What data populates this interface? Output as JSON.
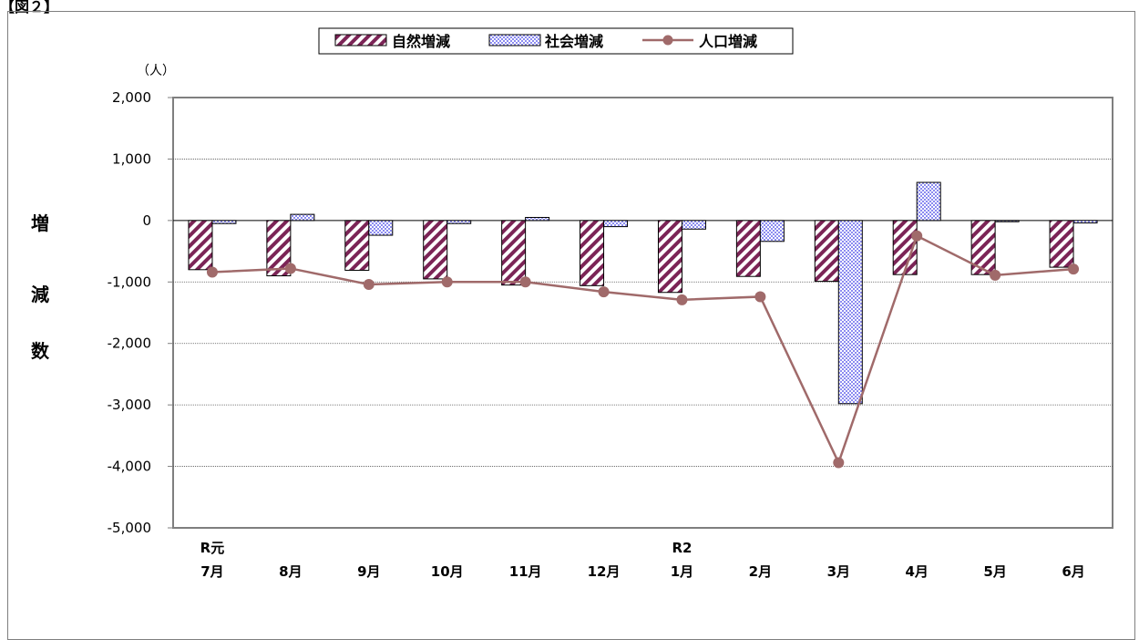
{
  "figure_label": "【図２】",
  "chart_data": {
    "type": "bar",
    "unit_label": "（人）",
    "ylabel_chars": [
      "増",
      "減",
      "数"
    ],
    "ylim": [
      -5000,
      2000
    ],
    "yticks": [
      2000,
      1000,
      0,
      -1000,
      -2000,
      -3000,
      -4000,
      -5000
    ],
    "ytick_labels": [
      "2,000",
      "1,000",
      "0",
      "-1,000",
      "-2,000",
      "-3,000",
      "-4,000",
      "-5,000"
    ],
    "grid": true,
    "legend_position": "top",
    "categories": [
      {
        "era": "R元",
        "month": "7月"
      },
      {
        "era": "",
        "month": "8月"
      },
      {
        "era": "",
        "month": "9月"
      },
      {
        "era": "",
        "month": "10月"
      },
      {
        "era": "",
        "month": "11月"
      },
      {
        "era": "",
        "month": "12月"
      },
      {
        "era": "R2",
        "month": "1月"
      },
      {
        "era": "",
        "month": "2月"
      },
      {
        "era": "",
        "month": "3月"
      },
      {
        "era": "",
        "month": "4月"
      },
      {
        "era": "",
        "month": "5月"
      },
      {
        "era": "",
        "month": "6月"
      }
    ],
    "series": [
      {
        "name": "自然増減",
        "type": "bar",
        "pattern": "diagonal-stripe",
        "color": "#7b2456",
        "values": [
          -800,
          -900,
          -810,
          -950,
          -1050,
          -1060,
          -1170,
          -910,
          -990,
          -880,
          -880,
          -760
        ]
      },
      {
        "name": "社会増減",
        "type": "bar",
        "pattern": "checker",
        "color": "#8b8bf0",
        "values": [
          -50,
          100,
          -240,
          -50,
          50,
          -100,
          -140,
          -340,
          -2980,
          620,
          -20,
          -40
        ]
      },
      {
        "name": "人口増減",
        "type": "line",
        "marker": "circle",
        "color": "#a06a6a",
        "values": [
          -840,
          -780,
          -1040,
          -1000,
          -1000,
          -1160,
          -1290,
          -1240,
          -3940,
          -250,
          -890,
          -790
        ]
      }
    ]
  }
}
